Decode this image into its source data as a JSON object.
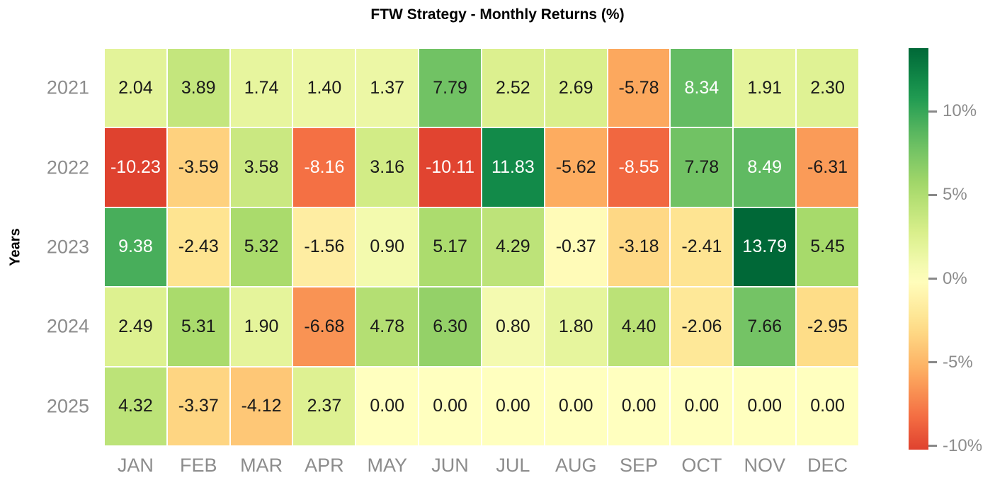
{
  "chart_data": {
    "type": "heatmap",
    "title": "FTW Strategy - Monthly Returns (%)",
    "ylabel": "Years",
    "xlabel": "",
    "columns": [
      "JAN",
      "FEB",
      "MAR",
      "APR",
      "MAY",
      "JUN",
      "JUL",
      "AUG",
      "SEP",
      "OCT",
      "NOV",
      "DEC"
    ],
    "rows": [
      "2021",
      "2022",
      "2023",
      "2024",
      "2025"
    ],
    "values": [
      [
        2.04,
        3.89,
        1.74,
        1.4,
        1.37,
        7.79,
        2.52,
        2.69,
        -5.78,
        8.34,
        1.91,
        2.3
      ],
      [
        -10.23,
        -3.59,
        3.58,
        -8.16,
        3.16,
        -10.11,
        11.83,
        -5.62,
        -8.55,
        7.78,
        8.49,
        -6.31
      ],
      [
        9.38,
        -2.43,
        5.32,
        -1.56,
        0.9,
        5.17,
        4.29,
        -0.37,
        -3.18,
        -2.41,
        13.79,
        5.45
      ],
      [
        2.49,
        5.31,
        1.9,
        -6.68,
        4.78,
        6.3,
        0.8,
        1.8,
        4.4,
        -2.06,
        7.66,
        -2.95
      ],
      [
        4.32,
        -3.37,
        -4.12,
        2.37,
        0.0,
        0.0,
        0.0,
        0.0,
        0.0,
        0.0,
        0.0,
        0.0
      ]
    ],
    "value_format_decimals": 2,
    "norm": {
      "center": 0,
      "vmin": -10.23,
      "vmax": 13.79
    },
    "colormap": {
      "name": "RdYlGn",
      "anchors": [
        {
          "t": 0.0,
          "color": "#a50026"
        },
        {
          "t": 0.1,
          "color": "#d73027"
        },
        {
          "t": 0.2,
          "color": "#f46d43"
        },
        {
          "t": 0.3,
          "color": "#fdae61"
        },
        {
          "t": 0.4,
          "color": "#fee08b"
        },
        {
          "t": 0.5,
          "color": "#ffffbf"
        },
        {
          "t": 0.6,
          "color": "#d9ef8b"
        },
        {
          "t": 0.7,
          "color": "#a6d96a"
        },
        {
          "t": 0.8,
          "color": "#66bd63"
        },
        {
          "t": 0.9,
          "color": "#1a9850"
        },
        {
          "t": 1.0,
          "color": "#006837"
        }
      ]
    },
    "colorbar": {
      "position": "right",
      "ticks": [
        {
          "value": 10,
          "label": "10%"
        },
        {
          "value": 5,
          "label": "5%"
        },
        {
          "value": 0,
          "label": "0%"
        },
        {
          "value": -5,
          "label": "-5%"
        },
        {
          "value": -10,
          "label": "-10%"
        }
      ]
    },
    "grid": false,
    "colors": {
      "background": "#ffffff",
      "title_text": "#000000",
      "axis_label_text": "#000000",
      "tick_label_text": "#8c8c8c",
      "tick_mark": "#888888",
      "annotation_dark": "#1a1a1a",
      "annotation_light": "#ffffff",
      "cell_gap": "#ffffff"
    }
  }
}
